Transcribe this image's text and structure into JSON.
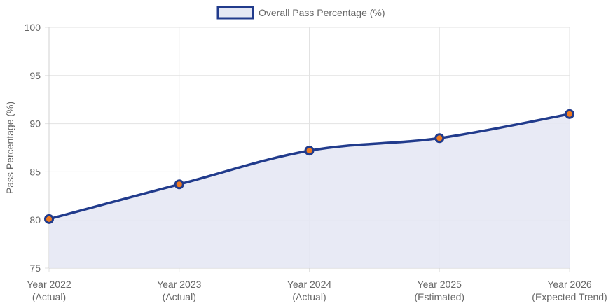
{
  "chart_data": {
    "type": "area",
    "categories": [
      [
        "Year 2022",
        "(Actual)"
      ],
      [
        "Year 2023",
        "(Actual)"
      ],
      [
        "Year 2024",
        "(Actual)"
      ],
      [
        "Year 2025",
        "(Estimated)"
      ],
      [
        "Year 2026",
        "(Expected Trend)"
      ]
    ],
    "series": [
      {
        "name": "Overall Pass Percentage (%)",
        "values": [
          80.1,
          83.7,
          87.2,
          88.5,
          91.0
        ]
      }
    ],
    "ylabel": "Pass Percentage (%)",
    "xlabel": "",
    "ylim": [
      75,
      100
    ],
    "yticks": [
      75,
      80,
      85,
      90,
      95,
      100
    ],
    "grid": true,
    "legend_position": "top-center",
    "colors": {
      "line": "#213b8c",
      "fill": "#e5e8f4",
      "point_fill": "#f07a1e",
      "point_border": "#213b8c"
    }
  }
}
